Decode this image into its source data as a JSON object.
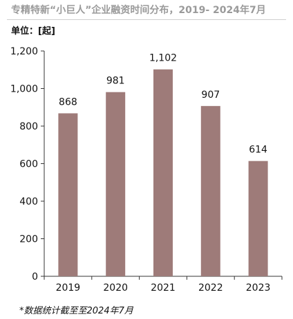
{
  "header": {
    "title": "专精特新“小巨人”企业融资时间分布，2019- 2024年7月",
    "unit": "单位：[起]"
  },
  "footer": {
    "note": "*数据统计截至至2024年7月"
  },
  "colors": {
    "bar": "#9e7b79",
    "axis": "#333333",
    "text": "#111111"
  },
  "chart_data": {
    "type": "bar",
    "title": "专精特新“小巨人”企业融资时间分布，2019- 2024年7月",
    "ylabel": "单位：[起]",
    "categories": [
      "2019",
      "2020",
      "2021",
      "2022",
      "2023"
    ],
    "values": [
      868,
      981,
      1102,
      907,
      614
    ],
    "value_labels": [
      "868",
      "981",
      "1,102",
      "907",
      "614"
    ],
    "yticks": [
      0,
      200,
      400,
      600,
      800,
      1000,
      1200
    ],
    "ytick_labels": [
      "0",
      "200",
      "400",
      "600",
      "800",
      "1,000",
      "1,200"
    ],
    "ylim": [
      0,
      1200
    ],
    "grid": false,
    "legend": "none"
  }
}
